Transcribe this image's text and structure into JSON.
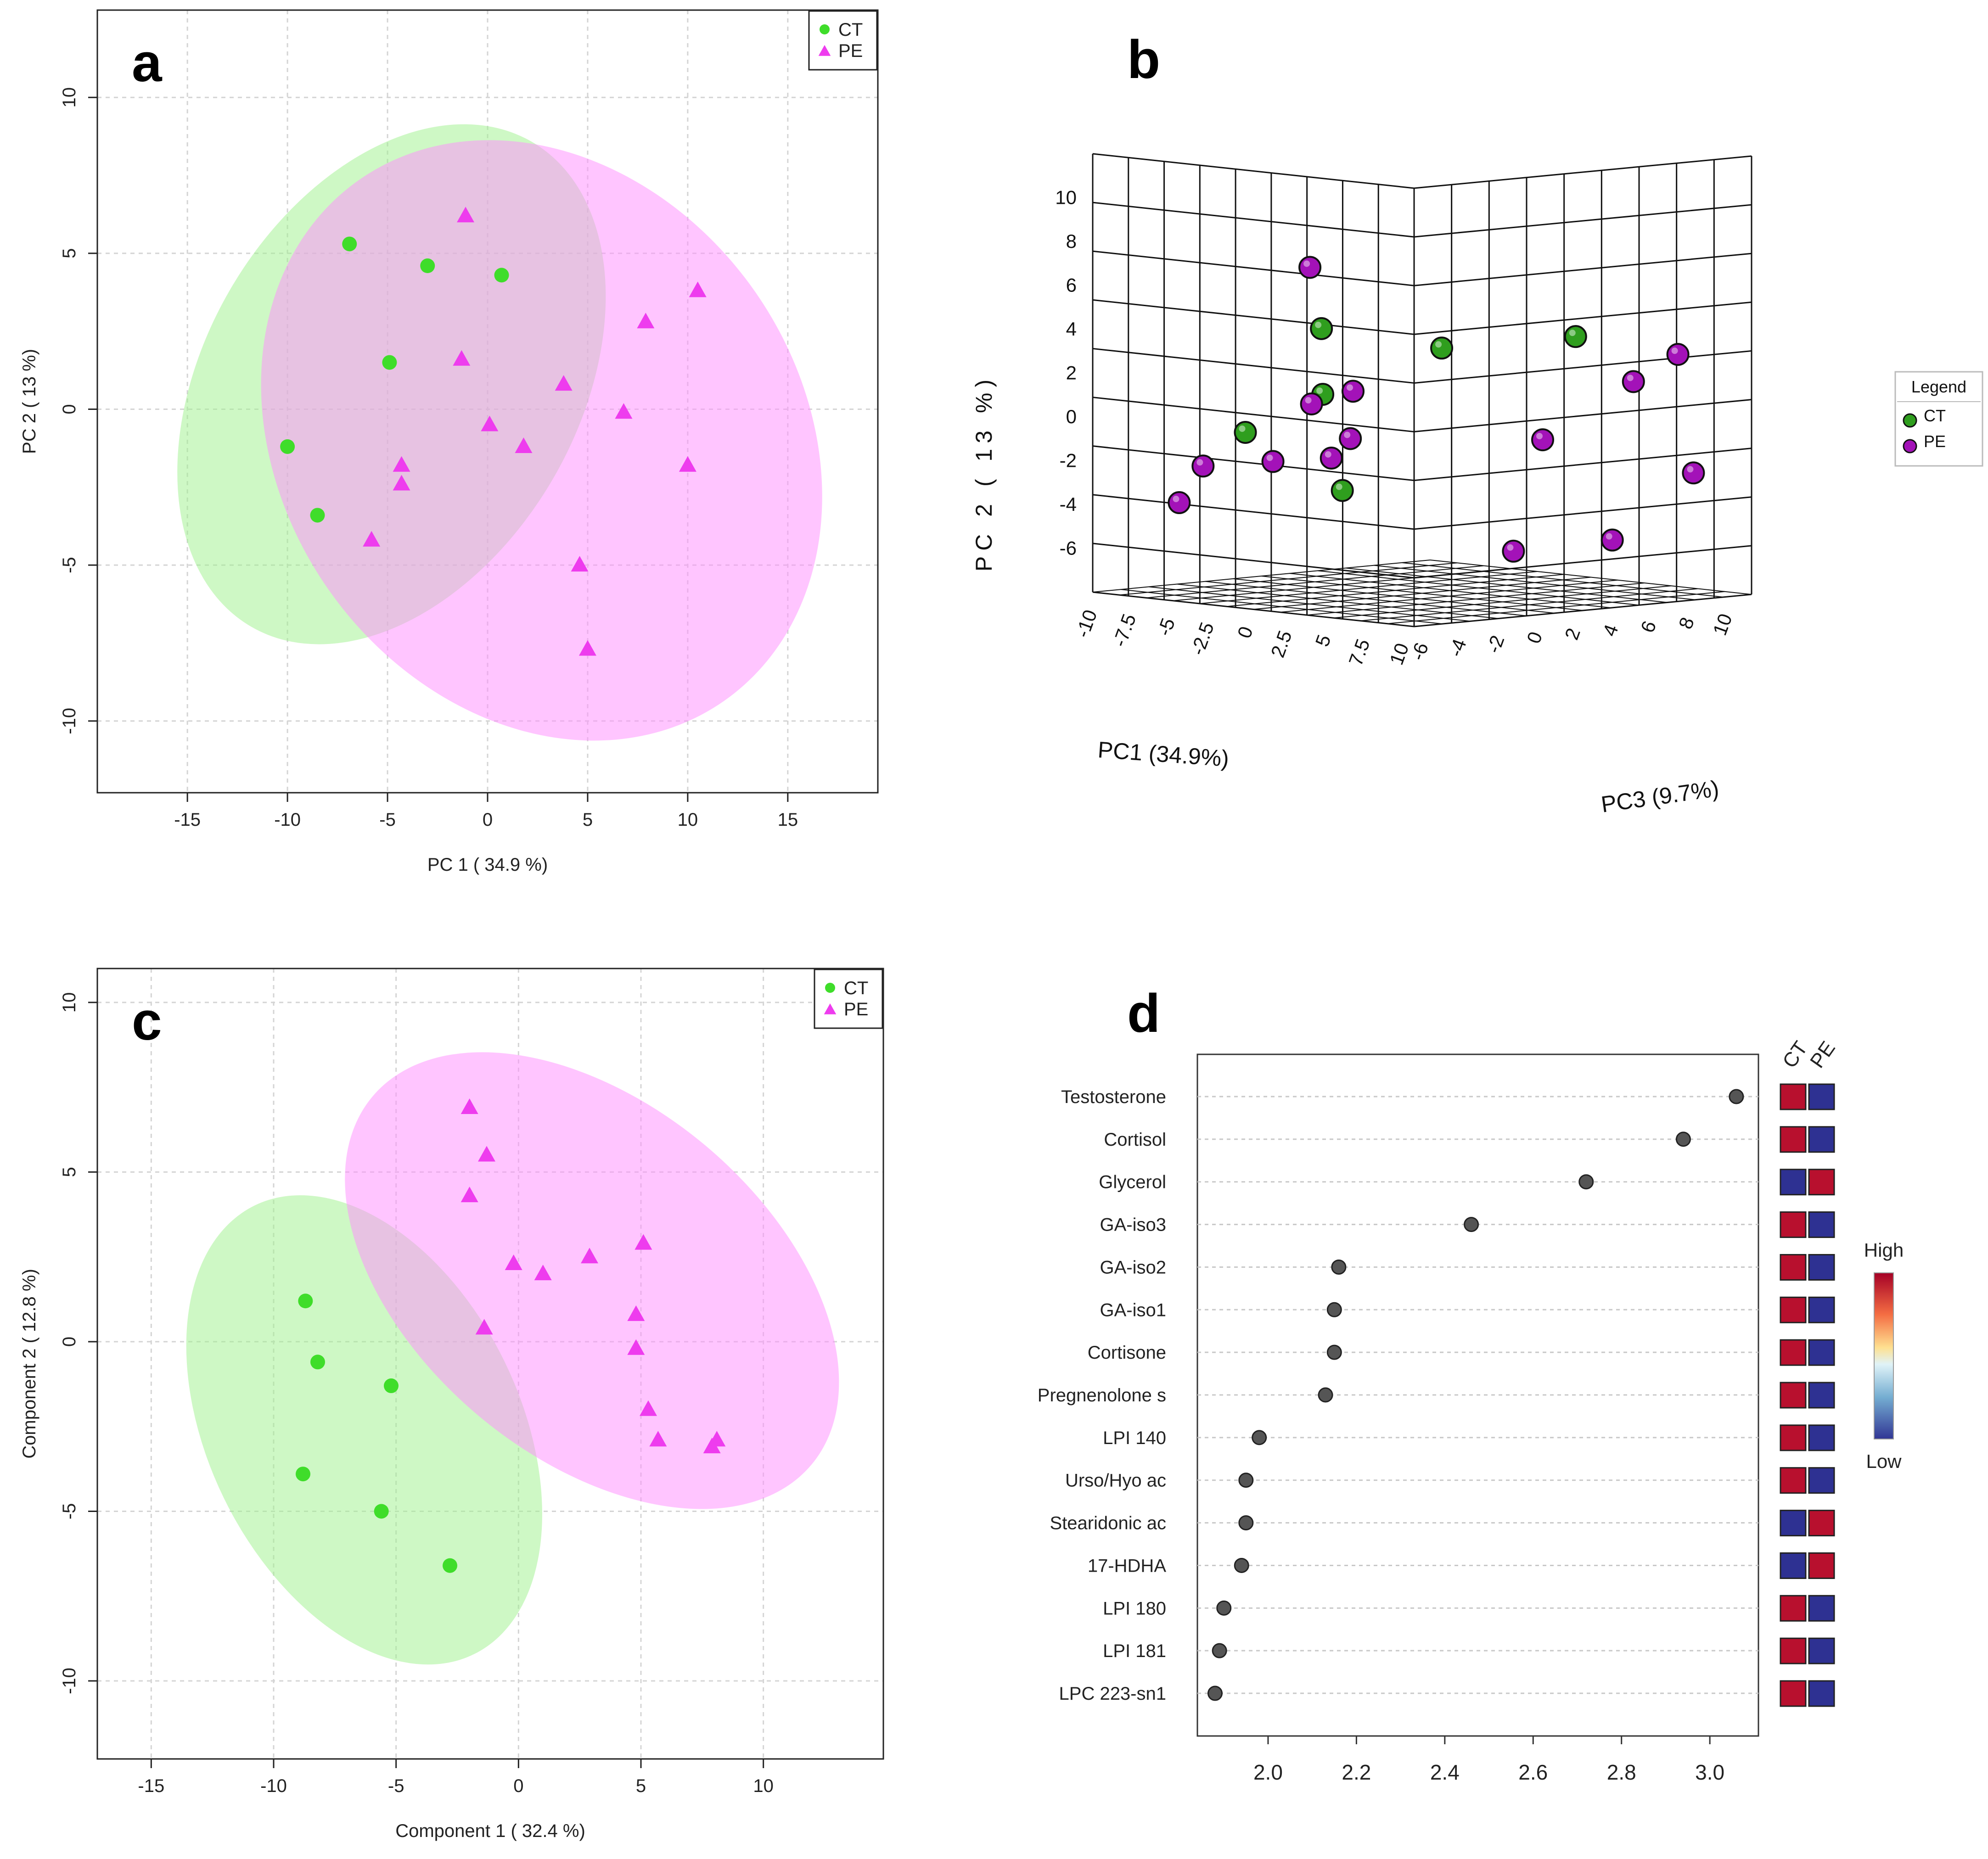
{
  "colors": {
    "ct_fill": "#9ef28c",
    "ct_point": "#3fdd2a",
    "pe_fill": "#ff8cff",
    "pe_point": "#ee3cee",
    "ct_sphere": "#2f9e1e",
    "pe_sphere": "#a312b8",
    "dot": "#555555",
    "high": "#b8102e",
    "low": "#2e3192"
  },
  "chart_data": [
    {
      "id": "a",
      "type": "scatter",
      "panel_label": "a",
      "xlabel": "PC 1 ( 34.9 %)",
      "ylabel": "PC 2 ( 13 %)",
      "xlim": [
        -19.5,
        19.5
      ],
      "ylim": [
        -12.3,
        12.8
      ],
      "xticks": [
        -15,
        -10,
        -5,
        0,
        5,
        10,
        15
      ],
      "yticks": [
        -10,
        -5,
        0,
        5,
        10
      ],
      "legend": [
        "CT",
        "PE"
      ],
      "ellipses": [
        {
          "group": "CT",
          "cx": -4.8,
          "cy": 0.8,
          "rx": 14.0,
          "ry": 6.0,
          "angle": 60
        },
        {
          "group": "PE",
          "cx": 2.7,
          "cy": -1.0,
          "rx": 13.0,
          "ry": 10.2,
          "angle": 35
        }
      ],
      "series": [
        {
          "name": "CT",
          "points": [
            [
              -6.9,
              5.3
            ],
            [
              -3.0,
              4.6
            ],
            [
              0.7,
              4.3
            ],
            [
              -4.9,
              1.5
            ],
            [
              -10.0,
              -1.2
            ],
            [
              -8.5,
              -3.4
            ]
          ]
        },
        {
          "name": "PE",
          "points": [
            [
              -1.1,
              6.2
            ],
            [
              10.5,
              3.8
            ],
            [
              7.9,
              2.8
            ],
            [
              -1.3,
              1.6
            ],
            [
              3.8,
              0.8
            ],
            [
              6.8,
              -0.1
            ],
            [
              0.1,
              -0.5
            ],
            [
              1.8,
              -1.2
            ],
            [
              -4.3,
              -1.8
            ],
            [
              10.0,
              -1.8
            ],
            [
              -4.3,
              -2.4
            ],
            [
              -5.8,
              -4.2
            ],
            [
              4.6,
              -5.0
            ],
            [
              5.0,
              -7.7
            ]
          ]
        }
      ]
    },
    {
      "id": "b",
      "type": "scatter",
      "panel_label": "b",
      "projection": "3d",
      "xlabel": "PC1 (34.9%)",
      "ylabel": "PC 2 ( 13 %)",
      "zlabel": "PC3 (9.7%)",
      "xticks": [
        "-10",
        "-7.5",
        "-5",
        "-2.5",
        "0",
        "2.5",
        "5",
        "7.5",
        "10"
      ],
      "yticks": [
        "10",
        "8",
        "6",
        "4",
        "2",
        "0",
        "-2",
        "-4",
        "-6"
      ],
      "zticks": [
        "-6",
        "-4",
        "-2",
        "0",
        "2",
        "4",
        "6",
        "8",
        "10"
      ],
      "legend_title": "Legend",
      "legend": [
        "CT",
        "PE"
      ],
      "series": [
        {
          "name": "CT",
          "points": [
            [
              2.6,
              4.9,
              -5.6
            ],
            [
              7.4,
              4.2,
              -3.3
            ],
            [
              7.1,
              4.1,
              4.1
            ],
            [
              -1.4,
              1.3,
              -2.1
            ],
            [
              -6.8,
              -0.9,
              -1.6
            ],
            [
              1.1,
              -2.8,
              -3.2
            ]
          ]
        },
        {
          "name": "PE",
          "points": [
            [
              -7.8,
              6.2,
              2.7
            ],
            [
              -3.5,
              0.6,
              -0.9
            ],
            [
              5.8,
              1.6,
              8.3
            ],
            [
              10.2,
              3.3,
              6.9
            ],
            [
              -0.8,
              1.4,
              -1.0
            ],
            [
              0.2,
              -0.6,
              -2.0
            ],
            [
              -3.1,
              -1.8,
              -3.3
            ],
            [
              -7.8,
              -2.4,
              -3.0
            ],
            [
              -8.7,
              -4.1,
              -3.5
            ],
            [
              -1.1,
              -1.6,
              -1.9
            ],
            [
              8.9,
              -0.2,
              0.8
            ],
            [
              10.7,
              -2.1,
              7.3
            ],
            [
              8.6,
              -5.2,
              -0.5
            ],
            [
              7.4,
              -5.3,
              5.8
            ]
          ]
        }
      ]
    },
    {
      "id": "c",
      "type": "scatter",
      "panel_label": "c",
      "xlabel": "Component 1 ( 32.4 %)",
      "ylabel": "Component 2 ( 12.8 %)",
      "xlim": [
        -17.2,
        14.9
      ],
      "ylim": [
        -12.3,
        11.0
      ],
      "xticks": [
        -15,
        -10,
        -5,
        0,
        5,
        10
      ],
      "yticks": [
        -10,
        -5,
        0,
        5,
        10
      ],
      "legend": [
        "CT",
        "PE"
      ],
      "ellipses": [
        {
          "group": "CT",
          "cx": -6.3,
          "cy": -2.6,
          "rx": 10.2,
          "ry": 4.6,
          "angle": -64
        },
        {
          "group": "PE",
          "cx": 3.0,
          "cy": 1.8,
          "rx": 11.7,
          "ry": 5.2,
          "angle": -40
        }
      ],
      "series": [
        {
          "name": "CT",
          "points": [
            [
              -8.7,
              1.2
            ],
            [
              -8.2,
              -0.6
            ],
            [
              -5.2,
              -1.3
            ],
            [
              -8.8,
              -3.9
            ],
            [
              -5.6,
              -5.0
            ],
            [
              -2.8,
              -6.6
            ]
          ]
        },
        {
          "name": "PE",
          "points": [
            [
              -2.0,
              6.9
            ],
            [
              -1.3,
              5.5
            ],
            [
              -2.0,
              4.3
            ],
            [
              2.9,
              2.5
            ],
            [
              5.1,
              2.9
            ],
            [
              -0.2,
              2.3
            ],
            [
              1.0,
              2.0
            ],
            [
              -1.4,
              0.4
            ],
            [
              4.8,
              0.8
            ],
            [
              4.8,
              -0.2
            ],
            [
              5.3,
              -2.0
            ],
            [
              5.7,
              -2.9
            ],
            [
              8.1,
              -2.9
            ],
            [
              7.9,
              -3.1
            ]
          ]
        }
      ]
    },
    {
      "id": "d",
      "type": "dot",
      "panel_label": "d",
      "xlim": [
        1.84,
        3.11
      ],
      "xticks": [
        "2.0",
        "2.2",
        "2.4",
        "2.6",
        "2.8",
        "3.0"
      ],
      "heatmap_columns": [
        "CT",
        "PE"
      ],
      "colorbar": {
        "high": "High",
        "low": "Low"
      },
      "items": [
        {
          "label": "Testosterone",
          "value": 3.06,
          "ct": "high",
          "pe": "low"
        },
        {
          "label": "Cortisol",
          "value": 2.94,
          "ct": "high",
          "pe": "low"
        },
        {
          "label": "Glycerol",
          "value": 2.72,
          "ct": "low",
          "pe": "high"
        },
        {
          "label": "GA-iso3",
          "value": 2.46,
          "ct": "high",
          "pe": "low"
        },
        {
          "label": "GA-iso2",
          "value": 2.16,
          "ct": "high",
          "pe": "low"
        },
        {
          "label": "GA-iso1",
          "value": 2.15,
          "ct": "high",
          "pe": "low"
        },
        {
          "label": "Cortisone",
          "value": 2.15,
          "ct": "high",
          "pe": "low"
        },
        {
          "label": "Pregnenolone s",
          "value": 2.13,
          "ct": "high",
          "pe": "low"
        },
        {
          "label": "LPI 140",
          "value": 1.98,
          "ct": "high",
          "pe": "low"
        },
        {
          "label": "Urso/Hyo ac",
          "value": 1.95,
          "ct": "high",
          "pe": "low"
        },
        {
          "label": "Stearidonic ac",
          "value": 1.95,
          "ct": "low",
          "pe": "high"
        },
        {
          "label": "17-HDHA",
          "value": 1.94,
          "ct": "low",
          "pe": "high"
        },
        {
          "label": "LPI 180",
          "value": 1.9,
          "ct": "high",
          "pe": "low"
        },
        {
          "label": "LPI 181",
          "value": 1.89,
          "ct": "high",
          "pe": "low"
        },
        {
          "label": "LPC 223-sn1",
          "value": 1.88,
          "ct": "high",
          "pe": "low"
        }
      ]
    }
  ]
}
